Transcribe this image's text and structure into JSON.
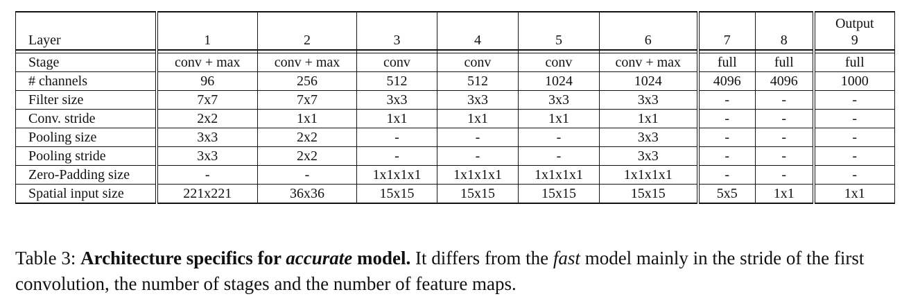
{
  "table": {
    "header": {
      "label": "Layer",
      "cols": [
        "1",
        "2",
        "3",
        "4",
        "5",
        "6",
        "7",
        "8",
        "9"
      ],
      "top_note_col9": "Output"
    },
    "rows": [
      {
        "label": "Stage",
        "cells": [
          "conv + max",
          "conv + max",
          "conv",
          "conv",
          "conv",
          "conv + max",
          "full",
          "full",
          "full"
        ]
      },
      {
        "label": "# channels",
        "cells": [
          "96",
          "256",
          "512",
          "512",
          "1024",
          "1024",
          "4096",
          "4096",
          "1000"
        ]
      },
      {
        "label": "Filter size",
        "cells": [
          "7x7",
          "7x7",
          "3x3",
          "3x3",
          "3x3",
          "3x3",
          "-",
          "-",
          "-"
        ]
      },
      {
        "label": "Conv. stride",
        "cells": [
          "2x2",
          "1x1",
          "1x1",
          "1x1",
          "1x1",
          "1x1",
          "-",
          "-",
          "-"
        ]
      },
      {
        "label": "Pooling size",
        "cells": [
          "3x3",
          "2x2",
          "-",
          "-",
          "-",
          "3x3",
          "-",
          "-",
          "-"
        ]
      },
      {
        "label": "Pooling stride",
        "cells": [
          "3x3",
          "2x2",
          "-",
          "-",
          "-",
          "3x3",
          "-",
          "-",
          "-"
        ]
      },
      {
        "label": "Zero-Padding size",
        "cells": [
          "-",
          "-",
          "1x1x1x1",
          "1x1x1x1",
          "1x1x1x1",
          "1x1x1x1",
          "-",
          "-",
          "-"
        ]
      },
      {
        "label": "Spatial input size",
        "cells": [
          "221x221",
          "36x36",
          "15x15",
          "15x15",
          "15x15",
          "15x15",
          "5x5",
          "1x1",
          "1x1"
        ]
      }
    ]
  },
  "caption": {
    "prefix": "Table 3: ",
    "bold_a": "Architecture specifics for ",
    "bold_italic": "accurate",
    "bold_b": " model.",
    "text_a": " It differs from the ",
    "italic": "fast",
    "text_b": " model mainly in the stride of the first convolution, the number of stages and the number of feature maps."
  }
}
